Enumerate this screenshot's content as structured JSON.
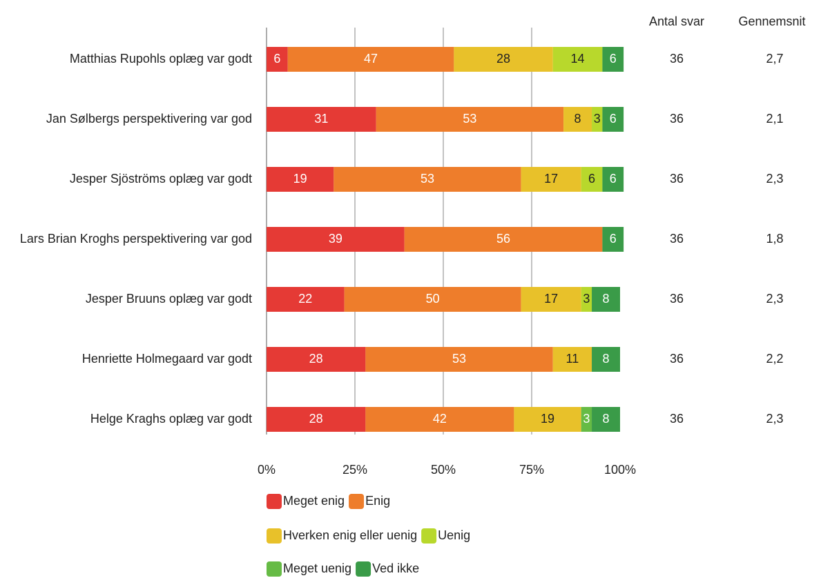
{
  "chart_data": {
    "type": "stacked_barh",
    "categories": [
      "Matthias Rupohls oplæg var godt",
      "Jan Sølbergs perspektivering var god",
      "Jesper Sjöströms oplæg var godt",
      "Lars Brian Kroghs perspektivering var god",
      "Jesper Bruuns oplæg var godt",
      "Henriette Holmegaard var godt",
      "Helge Kraghs oplæg var godt"
    ],
    "series": [
      {
        "name": "Meget enig",
        "color": "#e53a35",
        "values": [
          6,
          31,
          19,
          39,
          22,
          28,
          28
        ]
      },
      {
        "name": "Enig",
        "color": "#ee7d2b",
        "values": [
          47,
          53,
          53,
          56,
          50,
          53,
          42
        ]
      },
      {
        "name": "Hverken enig eller uenig",
        "color": "#e8c12a",
        "values": [
          28,
          8,
          17,
          0,
          17,
          11,
          19
        ]
      },
      {
        "name": "Uenig",
        "color": "#b8d82c",
        "values": [
          14,
          3,
          6,
          0,
          3,
          0,
          0
        ]
      },
      {
        "name": "Meget uenig",
        "color": "#66bb45",
        "values": [
          0,
          0,
          0,
          0,
          0,
          0,
          3
        ]
      },
      {
        "name": "Ved ikke",
        "color": "#3a9b48",
        "values": [
          6,
          6,
          6,
          6,
          8,
          8,
          8
        ]
      }
    ],
    "xlim": [
      0,
      100
    ],
    "xticks": [
      {
        "value": 0,
        "label": "0%"
      },
      {
        "value": 25,
        "label": "25%"
      },
      {
        "value": 50,
        "label": "50%"
      },
      {
        "value": 75,
        "label": "75%"
      },
      {
        "value": 100,
        "label": "100%"
      }
    ],
    "grid": true,
    "table_columns": [
      {
        "header": "Antal svar",
        "values": [
          36,
          36,
          36,
          36,
          36,
          36,
          36
        ]
      },
      {
        "header": "Gennemsnit",
        "values": [
          2.7,
          2.1,
          2.3,
          1.8,
          2.3,
          2.2,
          2.3
        ],
        "value_labels": [
          "2,7",
          "2,1",
          "2,3",
          "1,8",
          "2,3",
          "2,2",
          "2,3"
        ]
      }
    ]
  }
}
